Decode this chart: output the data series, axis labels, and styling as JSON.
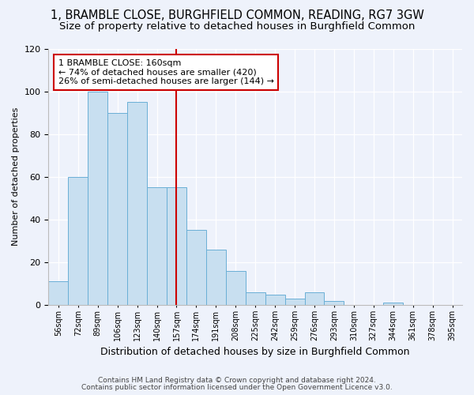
{
  "title": "1, BRAMBLE CLOSE, BURGHFIELD COMMON, READING, RG7 3GW",
  "subtitle": "Size of property relative to detached houses in Burghfield Common",
  "xlabel": "Distribution of detached houses by size in Burghfield Common",
  "ylabel": "Number of detached properties",
  "bar_labels": [
    "56sqm",
    "72sqm",
    "89sqm",
    "106sqm",
    "123sqm",
    "140sqm",
    "157sqm",
    "174sqm",
    "191sqm",
    "208sqm",
    "225sqm",
    "242sqm",
    "259sqm",
    "276sqm",
    "293sqm",
    "310sqm",
    "327sqm",
    "344sqm",
    "361sqm",
    "378sqm",
    "395sqm"
  ],
  "bar_values": [
    11,
    60,
    100,
    90,
    95,
    55,
    55,
    35,
    26,
    16,
    6,
    5,
    3,
    6,
    2,
    0,
    0,
    1,
    0,
    0,
    0
  ],
  "bar_color": "#c8dff0",
  "bar_edge_color": "#6aafd6",
  "vline_index": 6,
  "vline_color": "#cc0000",
  "annotation_title": "1 BRAMBLE CLOSE: 160sqm",
  "annotation_line1": "← 74% of detached houses are smaller (420)",
  "annotation_line2": "26% of semi-detached houses are larger (144) →",
  "annotation_box_color": "#ffffff",
  "annotation_box_edge": "#cc0000",
  "ylim": [
    0,
    120
  ],
  "yticks": [
    0,
    20,
    40,
    60,
    80,
    100,
    120
  ],
  "footnote1": "Contains HM Land Registry data © Crown copyright and database right 2024.",
  "footnote2": "Contains public sector information licensed under the Open Government Licence v3.0.",
  "bg_color": "#eef2fb",
  "title_fontsize": 10.5,
  "subtitle_fontsize": 9.5,
  "footnote_fontsize": 6.5
}
